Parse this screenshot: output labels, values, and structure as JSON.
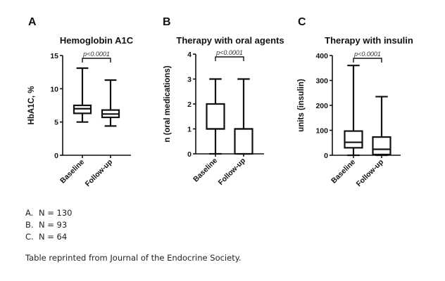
{
  "chart_data": [
    {
      "panel": "A",
      "type": "box",
      "title": "Hemoglobin A1C",
      "ylabel": "HbA1C, %",
      "xlabel": "",
      "categories": [
        "Baseline",
        "Follow-up"
      ],
      "ylim": [
        0,
        15
      ],
      "yticks": [
        0,
        5,
        10,
        15
      ],
      "ytick_labels": [
        "0",
        "5",
        "10",
        "15"
      ],
      "boxes": [
        {
          "name": "Baseline",
          "min": 5.0,
          "q1": 6.3,
          "median": 7.0,
          "q3": 7.5,
          "max": 13.1
        },
        {
          "name": "Follow-up",
          "min": 4.4,
          "q1": 5.7,
          "median": 6.2,
          "q3": 6.8,
          "max": 11.3
        }
      ],
      "annotation": "p<0.0001",
      "grid": false
    },
    {
      "panel": "B",
      "type": "box",
      "title": "Therapy with oral agents",
      "ylabel": "n (oral medications)",
      "xlabel": "",
      "categories": [
        "Baseline",
        "Follow-up"
      ],
      "ylim": [
        0,
        4
      ],
      "yticks": [
        0,
        1,
        2,
        3,
        4
      ],
      "ytick_labels": [
        "0",
        "1",
        "2",
        "3",
        "4"
      ],
      "boxes": [
        {
          "name": "Baseline",
          "min": 0,
          "q1": 1,
          "median": 1,
          "q3": 2,
          "max": 3
        },
        {
          "name": "Follow-up",
          "min": 0,
          "q1": 0,
          "median": 1,
          "q3": 1,
          "max": 3
        }
      ],
      "annotation": "p<0.0001",
      "grid": false
    },
    {
      "panel": "C",
      "type": "box",
      "title": "Therapy with insulin",
      "ylabel": "units (insulin)",
      "xlabel": "",
      "categories": [
        "Baseline",
        "Follow-up"
      ],
      "ylim": [
        0,
        400
      ],
      "yticks": [
        0,
        100,
        200,
        300,
        400
      ],
      "ytick_labels": [
        "0",
        "100",
        "200",
        "300",
        "400"
      ],
      "boxes": [
        {
          "name": "Baseline",
          "min": 0,
          "q1": 30,
          "median": 52,
          "q3": 97,
          "max": 360
        },
        {
          "name": "Follow-up",
          "min": 0,
          "q1": 3,
          "median": 24,
          "q3": 73,
          "max": 235
        }
      ],
      "annotation": "p<0.0001",
      "grid": false
    }
  ],
  "sample_sizes": [
    {
      "letter": "A.",
      "text": "N = 130"
    },
    {
      "letter": "B.",
      "text": "N = 93"
    },
    {
      "letter": "C.",
      "text": "N = 64"
    }
  ],
  "footer": "Table reprinted from Journal of the Endocrine Society.",
  "colors": {
    "ink": "#111111",
    "annotation": "#333333"
  }
}
